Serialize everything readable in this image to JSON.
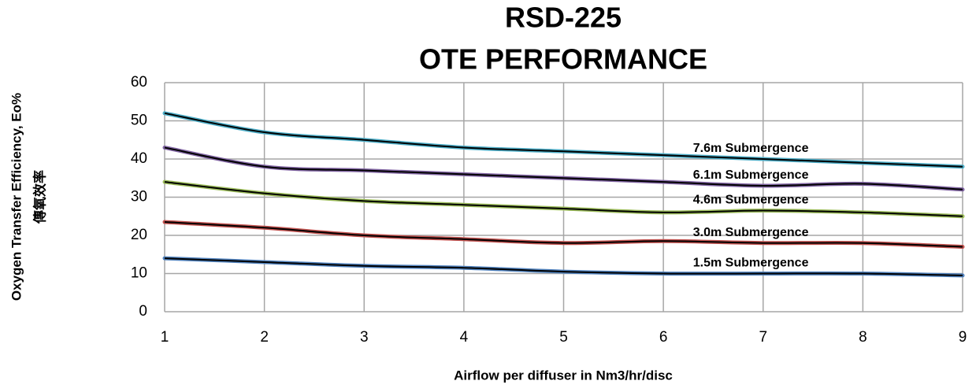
{
  "chart_data": {
    "type": "line",
    "title": "RSD-225",
    "subtitle": "OTE PERFORMANCE",
    "xlabel": "Airflow per diffuser in Nm3/hr/disc",
    "ylabel": [
      "Oxygen Transfer Efficiency, Eo%",
      "傳氧效率"
    ],
    "x": [
      1,
      2,
      3,
      4,
      5,
      6,
      7,
      8,
      9
    ],
    "series": [
      {
        "name": "7.6m Submergence",
        "color": "#4bacc6",
        "values": [
          52,
          47,
          45,
          43,
          42,
          41,
          40,
          39,
          38
        ]
      },
      {
        "name": "6.1m Submergence",
        "color": "#8064a2",
        "values": [
          43,
          38,
          37,
          36,
          35,
          34,
          33,
          33.5,
          32
        ]
      },
      {
        "name": "4.6m Submergence",
        "color": "#9bbb59",
        "values": [
          34,
          31,
          29,
          28,
          27,
          26,
          26.5,
          26,
          25
        ]
      },
      {
        "name": "3.0m Submergence",
        "color": "#c0504d",
        "values": [
          23.5,
          22,
          20,
          19,
          18,
          18.5,
          18,
          18,
          17
        ]
      },
      {
        "name": "1.5m Submergence",
        "color": "#4f81bd",
        "values": [
          14,
          13,
          12,
          11.5,
          10.5,
          10,
          10,
          10,
          9.5
        ]
      }
    ],
    "xlim": [
      1,
      9
    ],
    "xticks": [
      1,
      2,
      3,
      4,
      5,
      6,
      7,
      8,
      9
    ],
    "ylim": [
      0,
      60
    ],
    "yticks": [
      0,
      10,
      20,
      30,
      40,
      50,
      60
    ],
    "grid": true
  }
}
